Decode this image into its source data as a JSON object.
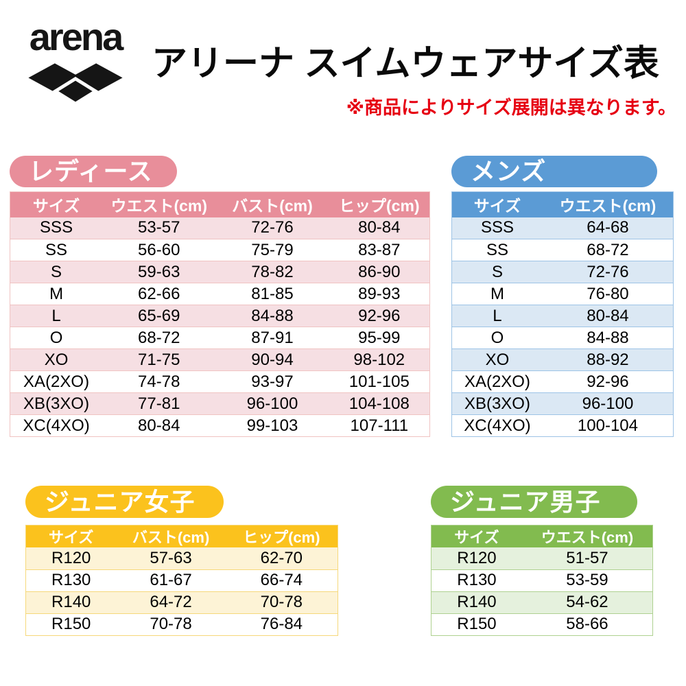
{
  "header": {
    "brand": "arena",
    "title": "アリーナ スイムウェアサイズ表",
    "note": "※商品によりサイズ展開は異なります。"
  },
  "colors": {
    "red": "#e60012",
    "logo": "#151515",
    "ladies": "#e88e9a",
    "ladies-light": "#f6dfe3",
    "ladies-line": "#f0c3c2",
    "mens": "#5b9bd5",
    "mens-light": "#dbe8f4",
    "mens-line": "#9dc3e6",
    "girls": "#fbc21d",
    "girls-light": "#fdf3d6",
    "girls-line": "#f6d87a",
    "boys": "#82bb4f",
    "boys-light": "#e5f1dd",
    "boys-line": "#aed190"
  },
  "tables": {
    "ladies": {
      "badge": "レディース",
      "columns": [
        "サイズ",
        "ウエスト(cm)",
        "バスト(cm)",
        "ヒップ(cm)"
      ],
      "rows": [
        [
          "SSS",
          "53-57",
          "72-76",
          "80-84"
        ],
        [
          "SS",
          "56-60",
          "75-79",
          "83-87"
        ],
        [
          "S",
          "59-63",
          "78-82",
          "86-90"
        ],
        [
          "M",
          "62-66",
          "81-85",
          "89-93"
        ],
        [
          "L",
          "65-69",
          "84-88",
          "92-96"
        ],
        [
          "O",
          "68-72",
          "87-91",
          "95-99"
        ],
        [
          "XO",
          "71-75",
          "90-94",
          "98-102"
        ],
        [
          "XA(2XO)",
          "74-78",
          "93-97",
          "101-105"
        ],
        [
          "XB(3XO)",
          "77-81",
          "96-100",
          "104-108"
        ],
        [
          "XC(4XO)",
          "80-84",
          "99-103",
          "107-111"
        ]
      ]
    },
    "mens": {
      "badge": "メンズ",
      "columns": [
        "サイズ",
        "ウエスト(cm)"
      ],
      "rows": [
        [
          "SSS",
          "64-68"
        ],
        [
          "SS",
          "68-72"
        ],
        [
          "S",
          "72-76"
        ],
        [
          "M",
          "76-80"
        ],
        [
          "L",
          "80-84"
        ],
        [
          "O",
          "84-88"
        ],
        [
          "XO",
          "88-92"
        ],
        [
          "XA(2XO)",
          "92-96"
        ],
        [
          "XB(3XO)",
          "96-100"
        ],
        [
          "XC(4XO)",
          "100-104"
        ]
      ]
    },
    "junior_girls": {
      "badge": "ジュニア女子",
      "columns": [
        "サイズ",
        "バスト(cm)",
        "ヒップ(cm)"
      ],
      "rows": [
        [
          "R120",
          "57-63",
          "62-70"
        ],
        [
          "R130",
          "61-67",
          "66-74"
        ],
        [
          "R140",
          "64-72",
          "70-78"
        ],
        [
          "R150",
          "70-78",
          "76-84"
        ]
      ]
    },
    "junior_boys": {
      "badge": "ジュニア男子",
      "columns": [
        "サイズ",
        "ウエスト(cm)"
      ],
      "rows": [
        [
          "R120",
          "51-57"
        ],
        [
          "R130",
          "53-59"
        ],
        [
          "R140",
          "54-62"
        ],
        [
          "R150",
          "58-66"
        ]
      ]
    }
  }
}
